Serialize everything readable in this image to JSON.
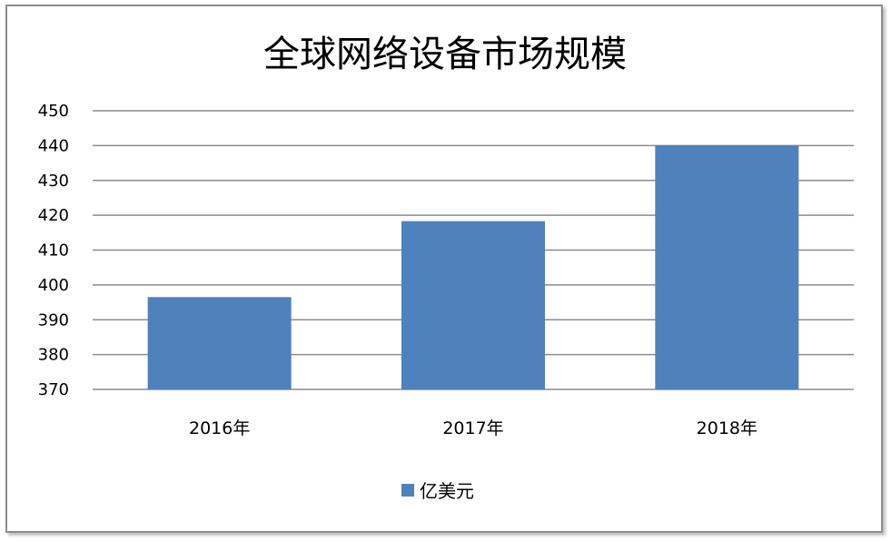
{
  "chart_data": {
    "type": "bar",
    "title": "全球网络设备市场规模",
    "categories": [
      "2016年",
      "2017年",
      "2018年"
    ],
    "series": [
      {
        "name": "亿美元",
        "values": [
          396.5,
          418.3,
          440
        ],
        "color": "#4f81bd"
      }
    ],
    "xlabel": "",
    "ylabel": "",
    "ylim": [
      370,
      450
    ],
    "yticks": [
      370,
      380,
      390,
      400,
      410,
      420,
      430,
      440,
      450
    ],
    "ytick_labels": [
      "370",
      "380",
      "390",
      "400",
      "410",
      "420",
      "430",
      "440",
      "450"
    ],
    "grid": true,
    "gridline_color": "#8c8c8c",
    "legend_position": "bottom"
  }
}
